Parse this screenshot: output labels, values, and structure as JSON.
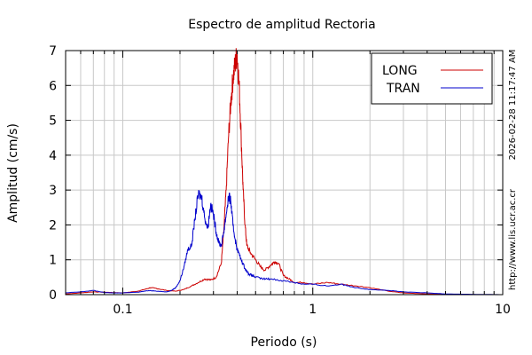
{
  "chart_data": {
    "type": "line",
    "title": "Espectro de amplitud Rectoria",
    "xlabel": "Periodo (s)",
    "ylabel": "Amplitud (cm/s)",
    "x_scale": "log",
    "xlim": [
      0.05,
      10
    ],
    "ylim": [
      0,
      7
    ],
    "x_ticks": [
      {
        "value": 0.1,
        "label": "0.1"
      },
      {
        "value": 1,
        "label": "1"
      },
      {
        "value": 10,
        "label": "10"
      }
    ],
    "y_ticks": [
      0,
      1,
      2,
      3,
      4,
      5,
      6,
      7
    ],
    "grid": true,
    "legend_position": "top-right",
    "side_texts": [
      "2026-02-28 11:17:47 AM",
      "http://www.lis.ucr.ac.cr"
    ],
    "series": [
      {
        "name": "LONG",
        "color": "#cc0000",
        "x": [
          0.05,
          0.06,
          0.07,
          0.08,
          0.09,
          0.1,
          0.12,
          0.13,
          0.14,
          0.15,
          0.17,
          0.19,
          0.21,
          0.23,
          0.25,
          0.27,
          0.29,
          0.31,
          0.33,
          0.34,
          0.35,
          0.36,
          0.37,
          0.38,
          0.39,
          0.4,
          0.41,
          0.42,
          0.43,
          0.44,
          0.45,
          0.47,
          0.5,
          0.53,
          0.56,
          0.6,
          0.63,
          0.66,
          0.7,
          0.75,
          0.8,
          0.9,
          1.0,
          1.2,
          1.4,
          1.7,
          2.0,
          2.5,
          3.0,
          4.0,
          5.0,
          7.0,
          10.0
        ],
        "y": [
          0.02,
          0.05,
          0.08,
          0.07,
          0.06,
          0.05,
          0.1,
          0.15,
          0.2,
          0.18,
          0.12,
          0.1,
          0.15,
          0.25,
          0.35,
          0.45,
          0.42,
          0.5,
          0.9,
          1.8,
          3.0,
          4.5,
          5.5,
          6.2,
          6.6,
          6.9,
          6.0,
          4.5,
          3.0,
          2.0,
          1.4,
          1.2,
          1.0,
          0.8,
          0.7,
          0.85,
          0.95,
          0.9,
          0.55,
          0.45,
          0.35,
          0.35,
          0.3,
          0.35,
          0.3,
          0.25,
          0.2,
          0.1,
          0.05,
          0.02,
          0.01,
          0.0,
          0.0
        ]
      },
      {
        "name": "TRAN",
        "color": "#0000cc",
        "x": [
          0.05,
          0.06,
          0.07,
          0.08,
          0.09,
          0.1,
          0.12,
          0.13,
          0.14,
          0.15,
          0.17,
          0.18,
          0.19,
          0.2,
          0.21,
          0.22,
          0.23,
          0.24,
          0.25,
          0.26,
          0.27,
          0.28,
          0.29,
          0.3,
          0.31,
          0.32,
          0.33,
          0.34,
          0.35,
          0.36,
          0.37,
          0.38,
          0.39,
          0.4,
          0.42,
          0.44,
          0.46,
          0.48,
          0.5,
          0.55,
          0.6,
          0.7,
          0.8,
          0.9,
          1.0,
          1.2,
          1.4,
          1.7,
          2.0,
          2.5,
          3.0,
          4.0,
          5.0,
          7.0,
          10.0
        ],
        "y": [
          0.05,
          0.08,
          0.12,
          0.06,
          0.05,
          0.05,
          0.07,
          0.1,
          0.12,
          0.1,
          0.08,
          0.12,
          0.2,
          0.4,
          0.8,
          1.3,
          1.4,
          2.2,
          2.9,
          2.8,
          2.2,
          1.9,
          2.6,
          2.3,
          1.8,
          1.5,
          1.4,
          1.8,
          2.3,
          2.8,
          2.7,
          2.0,
          1.6,
          1.3,
          1.0,
          0.75,
          0.6,
          0.55,
          0.5,
          0.45,
          0.45,
          0.4,
          0.35,
          0.3,
          0.3,
          0.25,
          0.3,
          0.2,
          0.15,
          0.12,
          0.08,
          0.05,
          0.02,
          0.01,
          0.0
        ]
      }
    ]
  }
}
